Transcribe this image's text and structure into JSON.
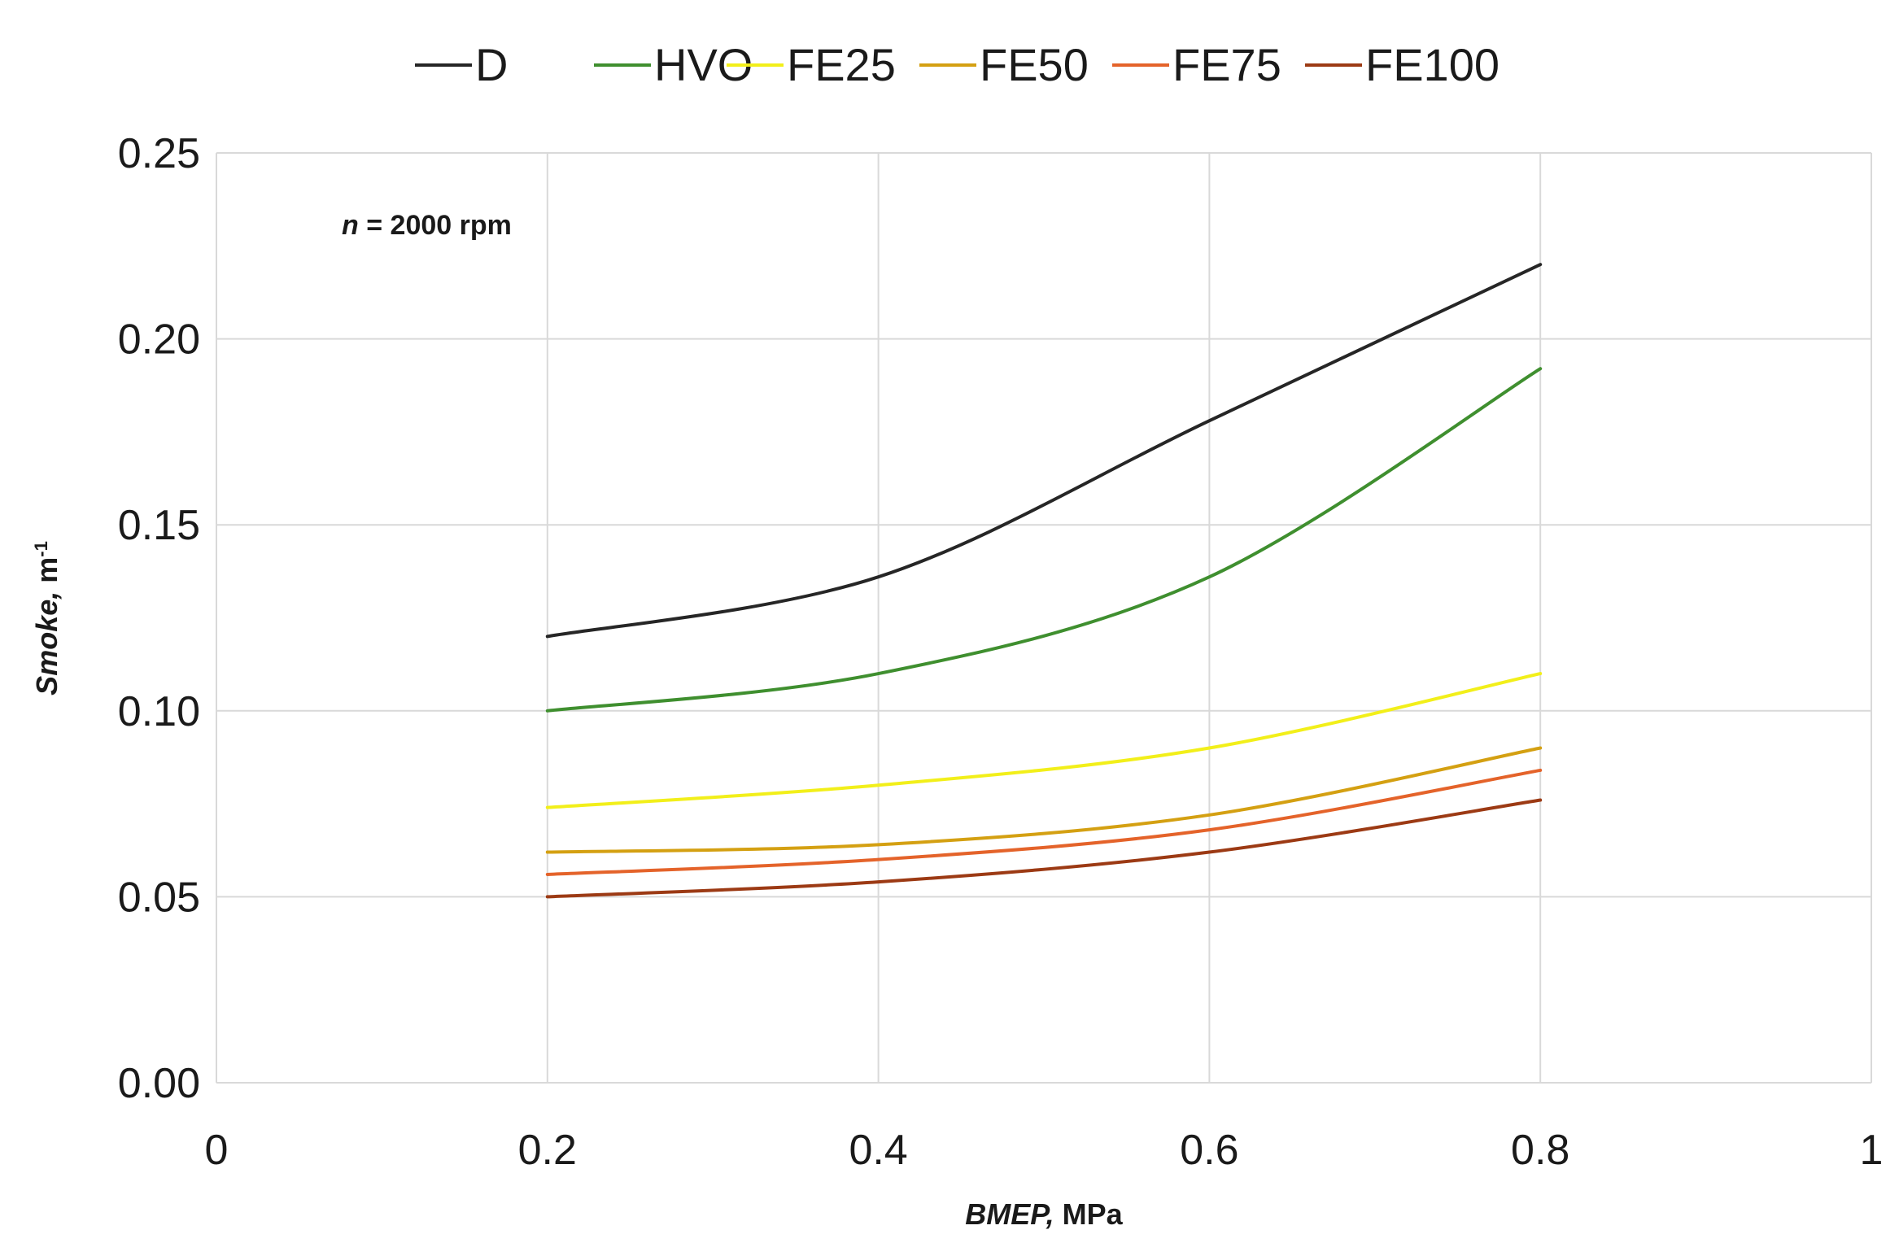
{
  "chart_data": {
    "type": "line",
    "title": "",
    "annotation": {
      "italic": "n",
      "text": " = 2000 rpm"
    },
    "xlabel": {
      "italic": "BMEP,",
      "text": " MPa"
    },
    "ylabel": {
      "italic": "Smoke,",
      "text": " m",
      "superscript": "-1"
    },
    "xlim": [
      0,
      1
    ],
    "ylim": [
      0,
      0.25
    ],
    "x_ticks": [
      0,
      0.2,
      0.4,
      0.6,
      0.8,
      1
    ],
    "x_tick_labels": [
      "0",
      "0.2",
      "0.4",
      "0.6",
      "0.8",
      "1"
    ],
    "y_ticks": [
      0,
      0.05,
      0.1,
      0.15,
      0.2,
      0.25
    ],
    "y_tick_labels": [
      "0.00",
      "0.05",
      "0.10",
      "0.15",
      "0.20",
      "0.25"
    ],
    "grid": true,
    "legend_position": "top-center",
    "x": [
      0.2,
      0.4,
      0.6,
      0.8
    ],
    "series": [
      {
        "name": "D",
        "color": "#262626",
        "values": [
          0.12,
          0.136,
          0.178,
          0.22
        ]
      },
      {
        "name": "HVO",
        "color": "#3f8f2f",
        "values": [
          0.1,
          0.11,
          0.136,
          0.192
        ]
      },
      {
        "name": "FE25",
        "color": "#f2ef1a",
        "values": [
          0.074,
          0.08,
          0.09,
          0.11
        ]
      },
      {
        "name": "FE50",
        "color": "#d4a012",
        "values": [
          0.062,
          0.064,
          0.072,
          0.09
        ]
      },
      {
        "name": "FE75",
        "color": "#e4632a",
        "values": [
          0.056,
          0.06,
          0.068,
          0.084
        ]
      },
      {
        "name": "FE100",
        "color": "#9c3a14",
        "values": [
          0.05,
          0.054,
          0.062,
          0.076
        ]
      }
    ]
  }
}
